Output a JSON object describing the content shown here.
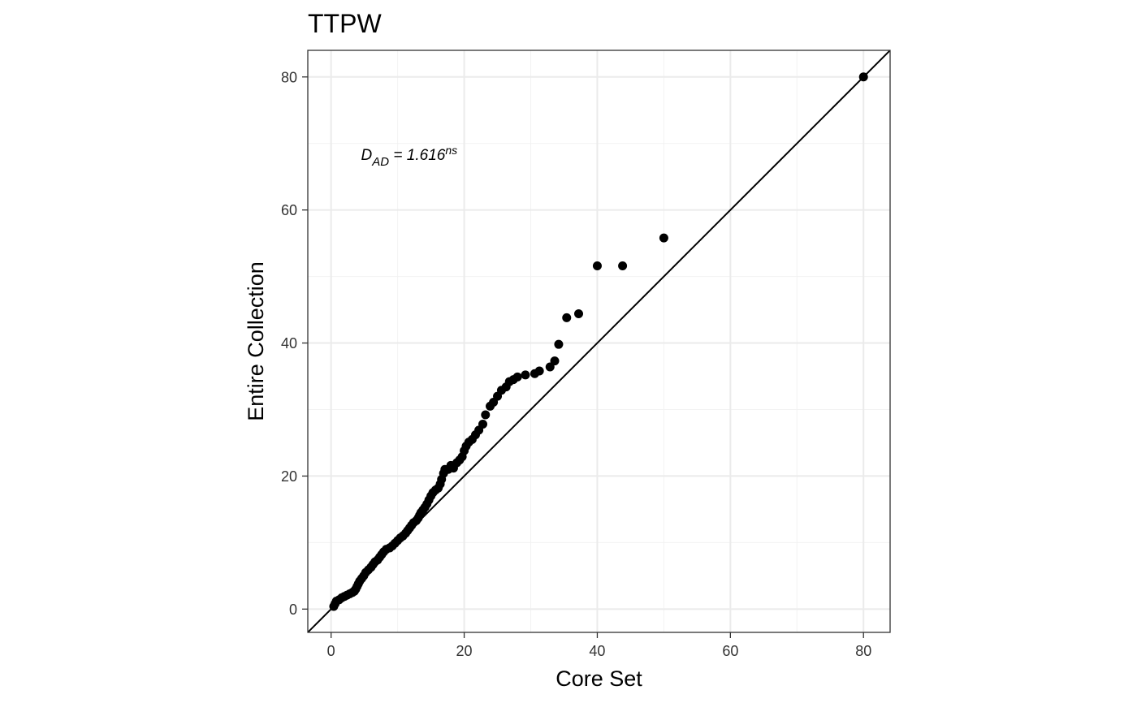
{
  "chart_data": {
    "type": "scatter",
    "title": "TTPW",
    "xlabel": "Core Set",
    "ylabel": "Entire Collection",
    "xlim": [
      -3.5,
      84
    ],
    "ylim": [
      -3.5,
      84
    ],
    "x_ticks": [
      0,
      20,
      40,
      60,
      80
    ],
    "y_ticks": [
      0,
      20,
      40,
      60,
      80
    ],
    "x_tick_labels": [
      "0",
      "20",
      "40",
      "60",
      "80"
    ],
    "y_tick_labels": [
      "0",
      "20",
      "40",
      "60",
      "80"
    ],
    "grid": true,
    "reference_line": {
      "slope": 1,
      "intercept": 0
    },
    "annotation": {
      "base": "D",
      "subscript": "AD",
      "text": " = 1.616",
      "superscript": "ns",
      "x": 4.5,
      "y": 67.5
    },
    "point_color": "#000000",
    "points": [
      {
        "x": 0.4,
        "y": 0.4
      },
      {
        "x": 0.6,
        "y": 0.8
      },
      {
        "x": 0.8,
        "y": 1.2
      },
      {
        "x": 1.2,
        "y": 1.4
      },
      {
        "x": 1.6,
        "y": 1.7
      },
      {
        "x": 2.0,
        "y": 1.9
      },
      {
        "x": 2.4,
        "y": 2.1
      },
      {
        "x": 2.8,
        "y": 2.3
      },
      {
        "x": 3.2,
        "y": 2.5
      },
      {
        "x": 3.5,
        "y": 2.7
      },
      {
        "x": 3.7,
        "y": 3.0
      },
      {
        "x": 3.9,
        "y": 3.4
      },
      {
        "x": 4.1,
        "y": 3.8
      },
      {
        "x": 4.3,
        "y": 4.2
      },
      {
        "x": 4.6,
        "y": 4.6
      },
      {
        "x": 4.9,
        "y": 5.0
      },
      {
        "x": 5.2,
        "y": 5.5
      },
      {
        "x": 5.6,
        "y": 5.9
      },
      {
        "x": 6.0,
        "y": 6.3
      },
      {
        "x": 6.3,
        "y": 6.7
      },
      {
        "x": 6.6,
        "y": 7.1
      },
      {
        "x": 7.0,
        "y": 7.4
      },
      {
        "x": 7.3,
        "y": 7.8
      },
      {
        "x": 7.6,
        "y": 8.2
      },
      {
        "x": 7.9,
        "y": 8.6
      },
      {
        "x": 8.3,
        "y": 9.0
      },
      {
        "x": 8.8,
        "y": 9.2
      },
      {
        "x": 9.2,
        "y": 9.5
      },
      {
        "x": 9.6,
        "y": 9.9
      },
      {
        "x": 10.0,
        "y": 10.3
      },
      {
        "x": 10.4,
        "y": 10.7
      },
      {
        "x": 10.8,
        "y": 11.0
      },
      {
        "x": 11.2,
        "y": 11.4
      },
      {
        "x": 11.5,
        "y": 11.8
      },
      {
        "x": 11.8,
        "y": 12.2
      },
      {
        "x": 12.1,
        "y": 12.6
      },
      {
        "x": 12.4,
        "y": 13.0
      },
      {
        "x": 12.8,
        "y": 13.3
      },
      {
        "x": 13.1,
        "y": 13.7
      },
      {
        "x": 13.3,
        "y": 14.1
      },
      {
        "x": 13.5,
        "y": 14.5
      },
      {
        "x": 13.8,
        "y": 14.9
      },
      {
        "x": 14.1,
        "y": 15.3
      },
      {
        "x": 14.4,
        "y": 15.8
      },
      {
        "x": 14.7,
        "y": 16.4
      },
      {
        "x": 15.0,
        "y": 17.0
      },
      {
        "x": 15.3,
        "y": 17.5
      },
      {
        "x": 15.7,
        "y": 17.9
      },
      {
        "x": 16.1,
        "y": 18.2
      },
      {
        "x": 16.4,
        "y": 18.8
      },
      {
        "x": 16.6,
        "y": 19.5
      },
      {
        "x": 16.9,
        "y": 20.4
      },
      {
        "x": 17.1,
        "y": 21.0
      },
      {
        "x": 17.6,
        "y": 21.0
      },
      {
        "x": 18.0,
        "y": 21.6
      },
      {
        "x": 18.4,
        "y": 21.2
      },
      {
        "x": 18.9,
        "y": 22.0
      },
      {
        "x": 19.3,
        "y": 22.4
      },
      {
        "x": 19.7,
        "y": 22.9
      },
      {
        "x": 20.0,
        "y": 23.8
      },
      {
        "x": 20.3,
        "y": 24.5
      },
      {
        "x": 20.7,
        "y": 25.1
      },
      {
        "x": 21.2,
        "y": 25.5
      },
      {
        "x": 21.7,
        "y": 26.2
      },
      {
        "x": 22.2,
        "y": 26.9
      },
      {
        "x": 22.8,
        "y": 27.8
      },
      {
        "x": 23.2,
        "y": 29.2
      },
      {
        "x": 23.9,
        "y": 30.5
      },
      {
        "x": 24.4,
        "y": 31.1
      },
      {
        "x": 25.0,
        "y": 32.0
      },
      {
        "x": 25.6,
        "y": 32.9
      },
      {
        "x": 26.3,
        "y": 33.4
      },
      {
        "x": 26.8,
        "y": 34.2
      },
      {
        "x": 27.4,
        "y": 34.5
      },
      {
        "x": 28.0,
        "y": 34.9
      },
      {
        "x": 29.2,
        "y": 35.2
      },
      {
        "x": 30.6,
        "y": 35.4
      },
      {
        "x": 31.3,
        "y": 35.8
      },
      {
        "x": 32.9,
        "y": 36.4
      },
      {
        "x": 33.6,
        "y": 37.3
      },
      {
        "x": 34.2,
        "y": 39.8
      },
      {
        "x": 35.4,
        "y": 43.8
      },
      {
        "x": 37.2,
        "y": 44.4
      },
      {
        "x": 40.0,
        "y": 51.6
      },
      {
        "x": 43.8,
        "y": 51.6
      },
      {
        "x": 50.0,
        "y": 55.8
      },
      {
        "x": 80.0,
        "y": 80.0
      }
    ]
  }
}
